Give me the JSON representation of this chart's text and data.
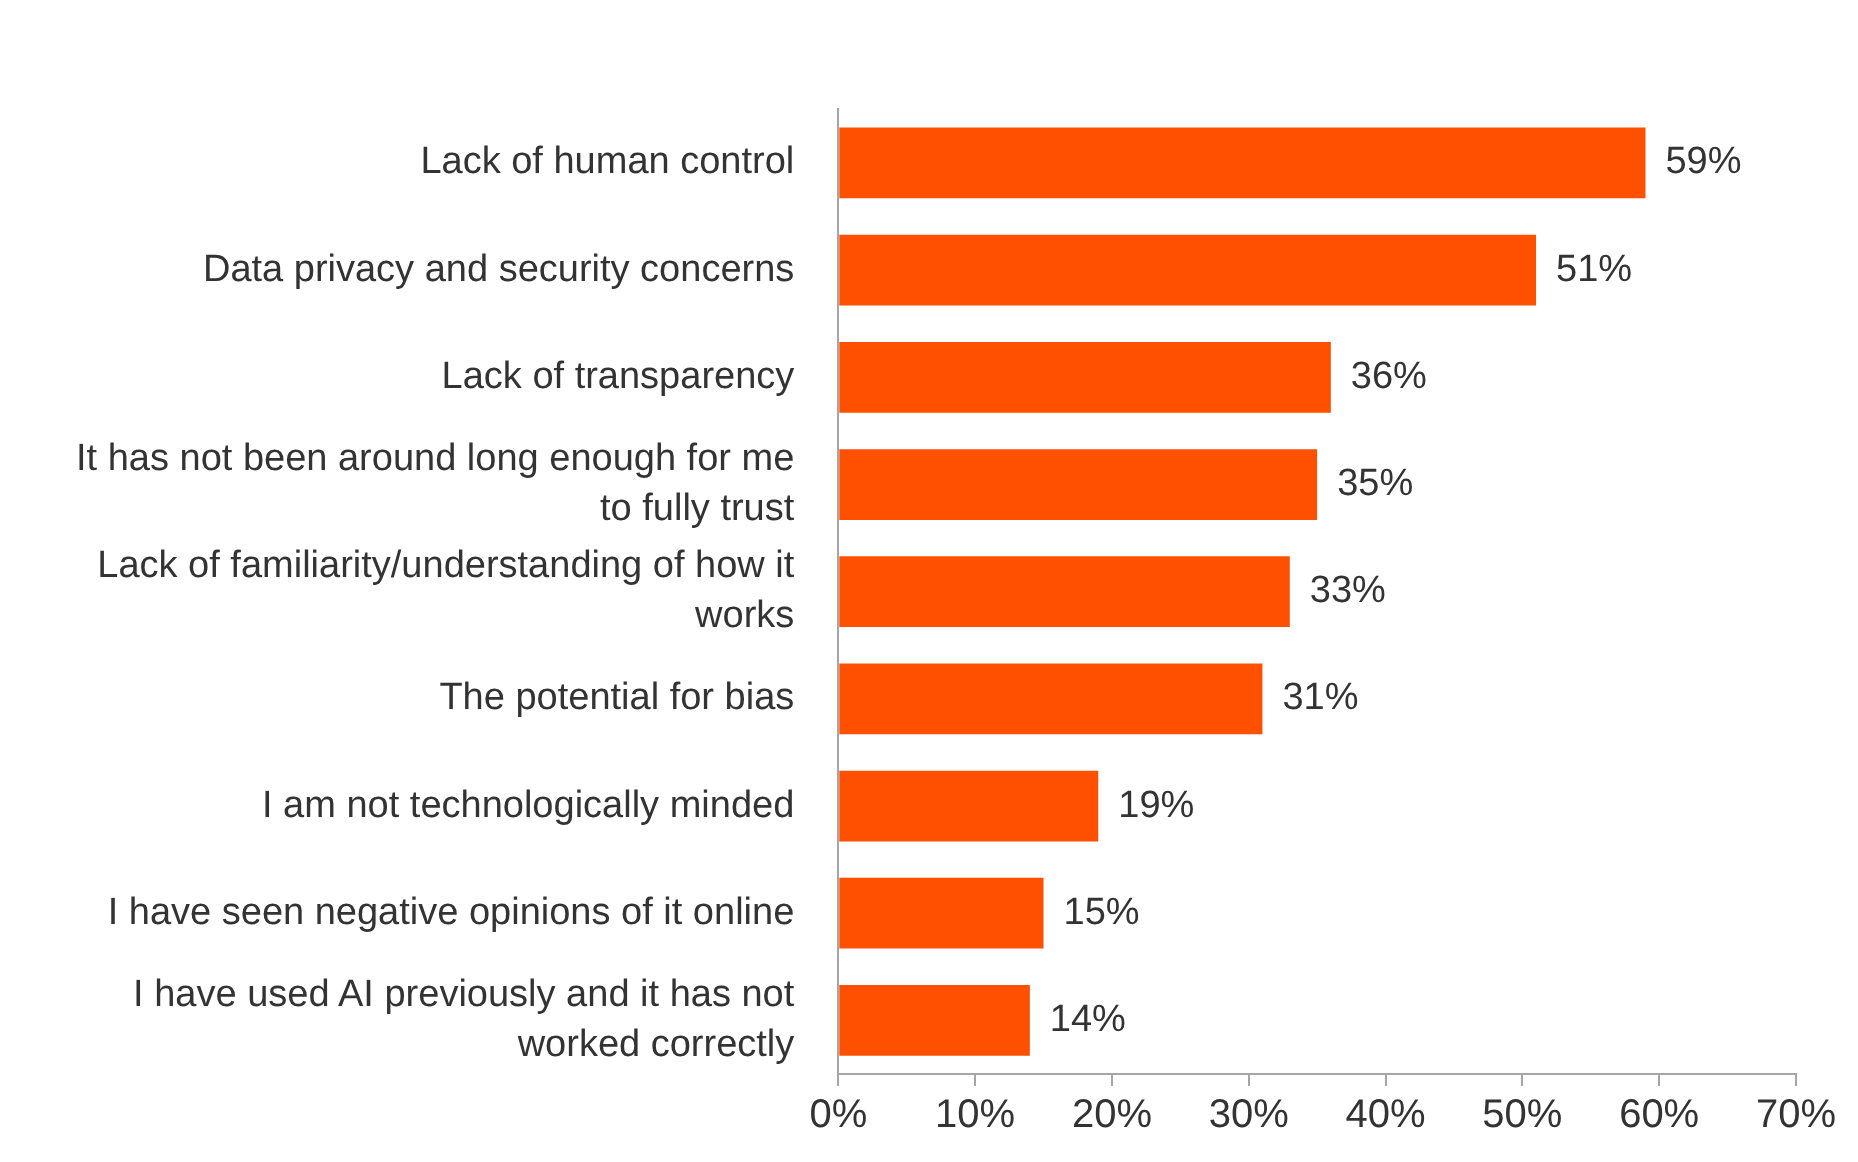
{
  "chart_data": {
    "type": "bar",
    "orientation": "horizontal",
    "categories": [
      "Lack of human control",
      "Data privacy and security concerns",
      "Lack of transparency",
      "It has not been around long enough for me to fully trust",
      "Lack of familiarity/understanding of how it works",
      "The potential for bias",
      "I am not technologically minded",
      "I have seen negative opinions of it online",
      "I have used AI previously and it has not worked correctly"
    ],
    "values": [
      59,
      51,
      36,
      35,
      33,
      31,
      19,
      15,
      14
    ],
    "value_labels": [
      "59%",
      "51%",
      "36%",
      "35%",
      "33%",
      "31%",
      "19%",
      "15%",
      "14%"
    ],
    "color": "#ff5000",
    "xlim": [
      0,
      70
    ],
    "xticks": [
      {
        "value": 0,
        "label": "0%"
      },
      {
        "value": 10,
        "label": "10%"
      },
      {
        "value": 20,
        "label": "20%"
      },
      {
        "value": 30,
        "label": "30%"
      },
      {
        "value": 40,
        "label": "40%"
      },
      {
        "value": 50,
        "label": "50%"
      },
      {
        "value": 60,
        "label": "60%"
      },
      {
        "value": 70,
        "label": "70%"
      }
    ],
    "grid": false,
    "legend": false
  }
}
